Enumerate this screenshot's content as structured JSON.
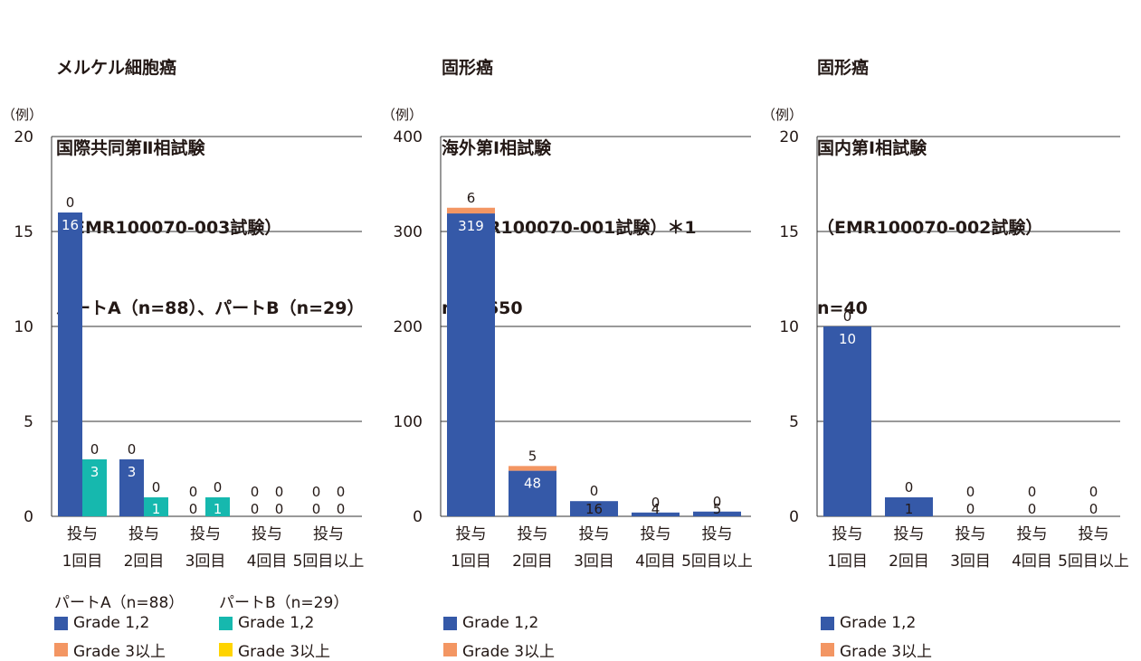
{
  "colors": {
    "partA_g12": "#3559A8",
    "partA_g3": "#F39663",
    "partB_g12": "#16B8AE",
    "partB_g3": "#FFD400",
    "grid": "#333333",
    "label_on_bar": "#ffffff"
  },
  "chart_data": [
    {
      "type": "bar",
      "stacked": true,
      "title_lines": [
        "メルケル細胞癌",
        "国際共同第Ⅱ相試験",
        "（EMR100070-003試験）",
        "パートA（n=88）、パートB（n=29）"
      ],
      "ylabel": "（例）",
      "ylim": [
        0,
        20
      ],
      "yticks": [
        0,
        5,
        10,
        15,
        20
      ],
      "categories": [
        [
          "投与",
          "1回目"
        ],
        [
          "投与",
          "2回目"
        ],
        [
          "投与",
          "3回目"
        ],
        [
          "投与",
          "4回目"
        ],
        [
          "投与",
          "5回目以上"
        ]
      ],
      "groups": [
        {
          "name": "パートA（n=88）",
          "series": [
            {
              "name": "Grade 1,2",
              "color_key": "partA_g12",
              "values": [
                16,
                3,
                0,
                0,
                0
              ]
            },
            {
              "name": "Grade 3以上",
              "color_key": "partA_g3",
              "values": [
                0,
                0,
                0,
                0,
                0
              ]
            }
          ]
        },
        {
          "name": "パートB（n=29）",
          "series": [
            {
              "name": "Grade 1,2",
              "color_key": "partB_g12",
              "values": [
                3,
                1,
                1,
                0,
                0
              ]
            },
            {
              "name": "Grade 3以上",
              "color_key": "partB_g3",
              "values": [
                0,
                0,
                0,
                0,
                0
              ]
            }
          ]
        }
      ],
      "grid": true
    },
    {
      "type": "bar",
      "stacked": true,
      "title_lines": [
        "固形癌",
        "海外第Ⅰ相試験",
        "（EMR100070-001試験）＊1",
        "n=1,650"
      ],
      "ylabel": "（例）",
      "ylim": [
        0,
        400
      ],
      "yticks": [
        0,
        100,
        200,
        300,
        400
      ],
      "categories": [
        [
          "投与",
          "1回目"
        ],
        [
          "投与",
          "2回目"
        ],
        [
          "投与",
          "3回目"
        ],
        [
          "投与",
          "4回目"
        ],
        [
          "投与",
          "5回目以上"
        ]
      ],
      "groups": [
        {
          "name": "",
          "series": [
            {
              "name": "Grade 1,2",
              "color_key": "partA_g12",
              "values": [
                319,
                48,
                16,
                4,
                5
              ]
            },
            {
              "name": "Grade 3以上",
              "color_key": "partA_g3",
              "values": [
                6,
                5,
                0,
                0,
                0
              ]
            }
          ]
        }
      ],
      "grid": true
    },
    {
      "type": "bar",
      "stacked": true,
      "title_lines": [
        "固形癌",
        "国内第Ⅰ相試験",
        "（EMR100070-002試験）",
        "n=40"
      ],
      "ylabel": "（例）",
      "ylim": [
        0,
        20
      ],
      "yticks": [
        0,
        5,
        10,
        15,
        20
      ],
      "categories": [
        [
          "投与",
          "1回目"
        ],
        [
          "投与",
          "2回目"
        ],
        [
          "投与",
          "3回目"
        ],
        [
          "投与",
          "4回目"
        ],
        [
          "投与",
          "5回目以上"
        ]
      ],
      "groups": [
        {
          "name": "",
          "series": [
            {
              "name": "Grade 1,2",
              "color_key": "partA_g12",
              "values": [
                10,
                1,
                0,
                0,
                0
              ]
            },
            {
              "name": "Grade 3以上",
              "color_key": "partA_g3",
              "values": [
                0,
                0,
                0,
                0,
                0
              ]
            }
          ]
        }
      ],
      "grid": true
    }
  ],
  "legends": [
    {
      "groups": [
        {
          "title": "パートA（n=88）",
          "items": [
            {
              "label": "Grade 1,2",
              "color_key": "partA_g12"
            },
            {
              "label": "Grade 3以上",
              "color_key": "partA_g3"
            }
          ]
        },
        {
          "title": "パートB（n=29）",
          "items": [
            {
              "label": "Grade 1,2",
              "color_key": "partB_g12"
            },
            {
              "label": "Grade 3以上",
              "color_key": "partB_g3"
            }
          ]
        }
      ]
    },
    {
      "groups": [
        {
          "title": "",
          "items": [
            {
              "label": "Grade 1,2",
              "color_key": "partA_g12"
            },
            {
              "label": "Grade 3以上",
              "color_key": "partA_g3"
            }
          ]
        }
      ]
    },
    {
      "groups": [
        {
          "title": "",
          "items": [
            {
              "label": "Grade 1,2",
              "color_key": "partA_g12"
            },
            {
              "label": "Grade 3以上",
              "color_key": "partA_g3"
            }
          ]
        }
      ]
    }
  ]
}
